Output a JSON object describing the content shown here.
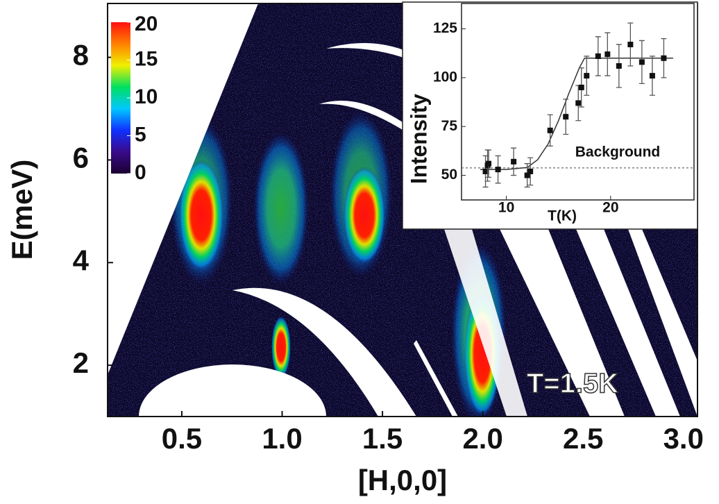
{
  "chart_data": [
    {
      "type": "heatmap",
      "xlabel": "[H,0,0]",
      "ylabel": "E(meV)",
      "xlim": [
        0.13,
        3.07
      ],
      "ylim": [
        1.0,
        9.05
      ],
      "xticks": [
        {
          "value": 0.5,
          "label": "0.5"
        },
        {
          "value": 1,
          "label": "1.0"
        },
        {
          "value": 1.5,
          "label": "1.5"
        },
        {
          "value": 2,
          "label": "2.0"
        },
        {
          "value": 2.5,
          "label": "2.5"
        },
        {
          "value": 3,
          "label": "3.0"
        }
      ],
      "yticks": [
        2,
        4,
        6,
        8
      ],
      "zlim": [
        0,
        20
      ],
      "zticks": [
        0,
        5,
        10,
        15,
        20
      ],
      "colormap": [
        "#1a0030",
        "#3a0a8a",
        "#1030ff",
        "#00c8ff",
        "#00e060",
        "#f0f000",
        "#ff8000",
        "#ff1010"
      ],
      "annotation": "T=1.5K"
    },
    {
      "type": "scatter",
      "xlabel": "T(K)",
      "ylabel": "Intensity",
      "xlim": [
        5.7,
        28
      ],
      "ylim": [
        37.4,
        138
      ],
      "xticks": [
        10,
        20
      ],
      "yticks": [
        50,
        75,
        100,
        125
      ],
      "x": [
        8.0,
        8.2,
        8.3,
        9.2,
        10.7,
        12.0,
        12.3,
        14.2,
        15.7,
        16.9,
        17.2,
        17.7,
        18.8,
        19.7,
        20.8,
        21.9,
        23.0,
        24.0,
        25.1
      ],
      "series": [
        {
          "color": "#111111",
          "values": [
            52,
            55,
            56,
            53,
            57,
            50,
            52,
            73,
            80,
            87,
            95,
            101,
            111,
            112,
            106,
            117,
            108,
            101,
            110
          ],
          "errors": [
            8,
            8,
            7,
            7,
            7,
            6,
            7,
            8,
            9,
            9,
            10,
            10,
            10,
            11,
            11,
            11,
            11,
            10,
            10
          ]
        }
      ],
      "fit": {
        "color": "#333333",
        "x": [
          7.5,
          10,
          12,
          13,
          14,
          15,
          16,
          17,
          17.5,
          26
        ],
        "values": [
          53,
          53,
          54,
          58,
          66,
          78,
          92,
          105,
          110,
          110
        ]
      },
      "hlines": [
        {
          "value": 53.8,
          "label": "Background"
        }
      ]
    }
  ]
}
